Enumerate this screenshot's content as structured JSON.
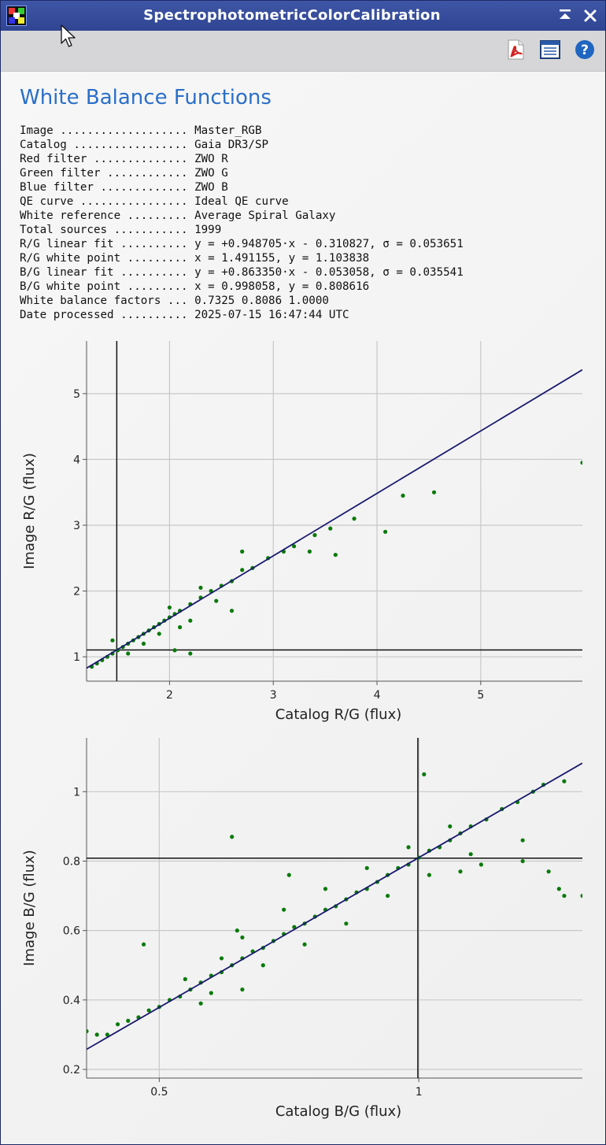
{
  "window": {
    "title": "SpectrophotometricColorCalibration",
    "buttons": [
      "shade-button",
      "close-button"
    ]
  },
  "toolbar": {
    "tools": [
      {
        "name": "export-pdf",
        "icon": "pdf-icon"
      },
      {
        "name": "report-view",
        "icon": "document-icon"
      },
      {
        "name": "help",
        "icon": "help-icon"
      }
    ]
  },
  "heading": "White Balance Functions",
  "report": [
    {
      "label": "Image ...................",
      "value": "Master_RGB"
    },
    {
      "label": "Catalog .................",
      "value": "Gaia DR3/SP"
    },
    {
      "label": "Red filter ..............",
      "value": "ZWO R"
    },
    {
      "label": "Green filter ............",
      "value": "ZWO G"
    },
    {
      "label": "Blue filter .............",
      "value": "ZWO B"
    },
    {
      "label": "QE curve ................",
      "value": "Ideal QE curve"
    },
    {
      "label": "White reference .........",
      "value": "Average Spiral Galaxy"
    },
    {
      "label": "Total sources ...........",
      "value": "1999"
    },
    {
      "label": "R/G linear fit ..........",
      "value": "y = +0.948705·x - 0.310827, σ = 0.053651"
    },
    {
      "label": "R/G white point .........",
      "value": "x = 1.491155, y = 1.103838"
    },
    {
      "label": "B/G linear fit ..........",
      "value": "y = +0.863350·x - 0.053058, σ = 0.035541"
    },
    {
      "label": "B/G white point .........",
      "value": "x = 0.998058, y = 0.808616"
    },
    {
      "label": "White balance factors ...",
      "value": "0.7325 0.8086 1.0000"
    },
    {
      "label": "Date processed ..........",
      "value": "2025-07-15 16:47:44 UTC"
    }
  ],
  "colors": {
    "points": "#0a7a0a",
    "fit_line": "#1a1a6e",
    "heading": "#2a6fc9"
  },
  "chart_data": [
    {
      "type": "scatter",
      "xlabel": "Catalog R/G (flux)",
      "ylabel": "Image R/G (flux)",
      "xlim": [
        1.2,
        5.98
      ],
      "ylim": [
        0.63,
        5.8
      ],
      "xticks": [
        2,
        3,
        4,
        5
      ],
      "yticks": [
        1,
        2,
        3,
        4,
        5
      ],
      "fit": {
        "slope": 0.948705,
        "intercept": -0.310827
      },
      "white_point": {
        "x": 1.491155,
        "y": 1.103838
      },
      "points": [
        {
          "x": 1.25,
          "y": 0.85
        },
        {
          "x": 1.3,
          "y": 0.9
        },
        {
          "x": 1.35,
          "y": 0.95
        },
        {
          "x": 1.4,
          "y": 1.0
        },
        {
          "x": 1.45,
          "y": 1.05
        },
        {
          "x": 1.5,
          "y": 1.1
        },
        {
          "x": 1.55,
          "y": 1.15
        },
        {
          "x": 1.6,
          "y": 1.2
        },
        {
          "x": 1.65,
          "y": 1.25
        },
        {
          "x": 1.7,
          "y": 1.3
        },
        {
          "x": 1.75,
          "y": 1.35
        },
        {
          "x": 1.8,
          "y": 1.4
        },
        {
          "x": 1.85,
          "y": 1.45
        },
        {
          "x": 1.9,
          "y": 1.5
        },
        {
          "x": 1.95,
          "y": 1.55
        },
        {
          "x": 2.0,
          "y": 1.6
        },
        {
          "x": 2.05,
          "y": 1.65
        },
        {
          "x": 2.1,
          "y": 1.7
        },
        {
          "x": 2.2,
          "y": 1.8
        },
        {
          "x": 2.3,
          "y": 1.9
        },
        {
          "x": 2.4,
          "y": 2.0
        },
        {
          "x": 2.5,
          "y": 2.08
        },
        {
          "x": 2.6,
          "y": 2.15
        },
        {
          "x": 2.7,
          "y": 2.32
        },
        {
          "x": 2.8,
          "y": 2.35
        },
        {
          "x": 2.95,
          "y": 2.5
        },
        {
          "x": 3.1,
          "y": 2.6
        },
        {
          "x": 3.2,
          "y": 2.68
        },
        {
          "x": 3.4,
          "y": 2.85
        },
        {
          "x": 3.55,
          "y": 2.95
        },
        {
          "x": 1.45,
          "y": 1.25
        },
        {
          "x": 1.6,
          "y": 1.05
        },
        {
          "x": 1.75,
          "y": 1.2
        },
        {
          "x": 1.9,
          "y": 1.35
        },
        {
          "x": 2.0,
          "y": 1.75
        },
        {
          "x": 2.1,
          "y": 1.45
        },
        {
          "x": 2.2,
          "y": 1.55
        },
        {
          "x": 2.3,
          "y": 2.05
        },
        {
          "x": 2.45,
          "y": 1.85
        },
        {
          "x": 2.6,
          "y": 1.7
        },
        {
          "x": 2.7,
          "y": 2.6
        },
        {
          "x": 2.05,
          "y": 1.1
        },
        {
          "x": 2.2,
          "y": 1.05
        },
        {
          "x": 3.35,
          "y": 2.6
        },
        {
          "x": 3.6,
          "y": 2.55
        },
        {
          "x": 3.78,
          "y": 3.1
        },
        {
          "x": 4.08,
          "y": 2.9
        },
        {
          "x": 4.25,
          "y": 3.45
        },
        {
          "x": 4.55,
          "y": 3.5
        },
        {
          "x": 5.98,
          "y": 3.95
        }
      ]
    },
    {
      "type": "scatter",
      "xlabel": "Catalog B/G (flux)",
      "ylabel": "Image B/G (flux)",
      "xlim": [
        0.36,
        1.315
      ],
      "ylim": [
        0.175,
        1.155
      ],
      "xticks": [
        0.5,
        1
      ],
      "yticks": [
        0.2,
        0.4,
        0.6,
        0.8,
        1
      ],
      "fit": {
        "slope": 0.86335,
        "intercept": -0.053058
      },
      "white_point": {
        "x": 0.998058,
        "y": 0.808616
      },
      "points": [
        {
          "x": 0.36,
          "y": 0.31
        },
        {
          "x": 0.38,
          "y": 0.3
        },
        {
          "x": 0.4,
          "y": 0.3
        },
        {
          "x": 0.42,
          "y": 0.33
        },
        {
          "x": 0.44,
          "y": 0.34
        },
        {
          "x": 0.46,
          "y": 0.35
        },
        {
          "x": 0.48,
          "y": 0.37
        },
        {
          "x": 0.5,
          "y": 0.38
        },
        {
          "x": 0.52,
          "y": 0.4
        },
        {
          "x": 0.54,
          "y": 0.41
        },
        {
          "x": 0.56,
          "y": 0.43
        },
        {
          "x": 0.58,
          "y": 0.45
        },
        {
          "x": 0.6,
          "y": 0.47
        },
        {
          "x": 0.62,
          "y": 0.48
        },
        {
          "x": 0.64,
          "y": 0.5
        },
        {
          "x": 0.66,
          "y": 0.52
        },
        {
          "x": 0.68,
          "y": 0.54
        },
        {
          "x": 0.7,
          "y": 0.55
        },
        {
          "x": 0.72,
          "y": 0.57
        },
        {
          "x": 0.74,
          "y": 0.59
        },
        {
          "x": 0.76,
          "y": 0.61
        },
        {
          "x": 0.78,
          "y": 0.62
        },
        {
          "x": 0.8,
          "y": 0.64
        },
        {
          "x": 0.82,
          "y": 0.66
        },
        {
          "x": 0.84,
          "y": 0.67
        },
        {
          "x": 0.86,
          "y": 0.69
        },
        {
          "x": 0.88,
          "y": 0.71
        },
        {
          "x": 0.9,
          "y": 0.72
        },
        {
          "x": 0.92,
          "y": 0.74
        },
        {
          "x": 0.94,
          "y": 0.76
        },
        {
          "x": 0.96,
          "y": 0.78
        },
        {
          "x": 0.98,
          "y": 0.79
        },
        {
          "x": 1.0,
          "y": 0.81
        },
        {
          "x": 1.02,
          "y": 0.83
        },
        {
          "x": 1.04,
          "y": 0.84
        },
        {
          "x": 1.06,
          "y": 0.86
        },
        {
          "x": 1.08,
          "y": 0.88
        },
        {
          "x": 1.1,
          "y": 0.9
        },
        {
          "x": 1.13,
          "y": 0.92
        },
        {
          "x": 1.16,
          "y": 0.95
        },
        {
          "x": 1.19,
          "y": 0.97
        },
        {
          "x": 1.22,
          "y": 1.0
        },
        {
          "x": 1.24,
          "y": 1.02
        },
        {
          "x": 1.28,
          "y": 1.03
        },
        {
          "x": 0.62,
          "y": 0.52
        },
        {
          "x": 0.66,
          "y": 0.58
        },
        {
          "x": 0.7,
          "y": 0.5
        },
        {
          "x": 0.74,
          "y": 0.66
        },
        {
          "x": 0.78,
          "y": 0.56
        },
        {
          "x": 0.82,
          "y": 0.72
        },
        {
          "x": 0.86,
          "y": 0.62
        },
        {
          "x": 0.9,
          "y": 0.78
        },
        {
          "x": 0.94,
          "y": 0.7
        },
        {
          "x": 0.98,
          "y": 0.84
        },
        {
          "x": 1.02,
          "y": 0.76
        },
        {
          "x": 1.06,
          "y": 0.9
        },
        {
          "x": 1.1,
          "y": 0.82
        },
        {
          "x": 0.55,
          "y": 0.46
        },
        {
          "x": 0.6,
          "y": 0.42
        },
        {
          "x": 0.65,
          "y": 0.6
        },
        {
          "x": 0.47,
          "y": 0.56
        },
        {
          "x": 0.64,
          "y": 0.87
        },
        {
          "x": 0.75,
          "y": 0.76
        },
        {
          "x": 1.01,
          "y": 1.05
        },
        {
          "x": 1.08,
          "y": 0.77
        },
        {
          "x": 1.12,
          "y": 0.79
        },
        {
          "x": 1.2,
          "y": 0.8
        },
        {
          "x": 1.2,
          "y": 0.86
        },
        {
          "x": 1.25,
          "y": 0.77
        },
        {
          "x": 1.27,
          "y": 0.72
        },
        {
          "x": 1.28,
          "y": 0.7
        },
        {
          "x": 1.315,
          "y": 0.7
        },
        {
          "x": 0.66,
          "y": 0.43
        },
        {
          "x": 0.58,
          "y": 0.39
        }
      ]
    }
  ]
}
